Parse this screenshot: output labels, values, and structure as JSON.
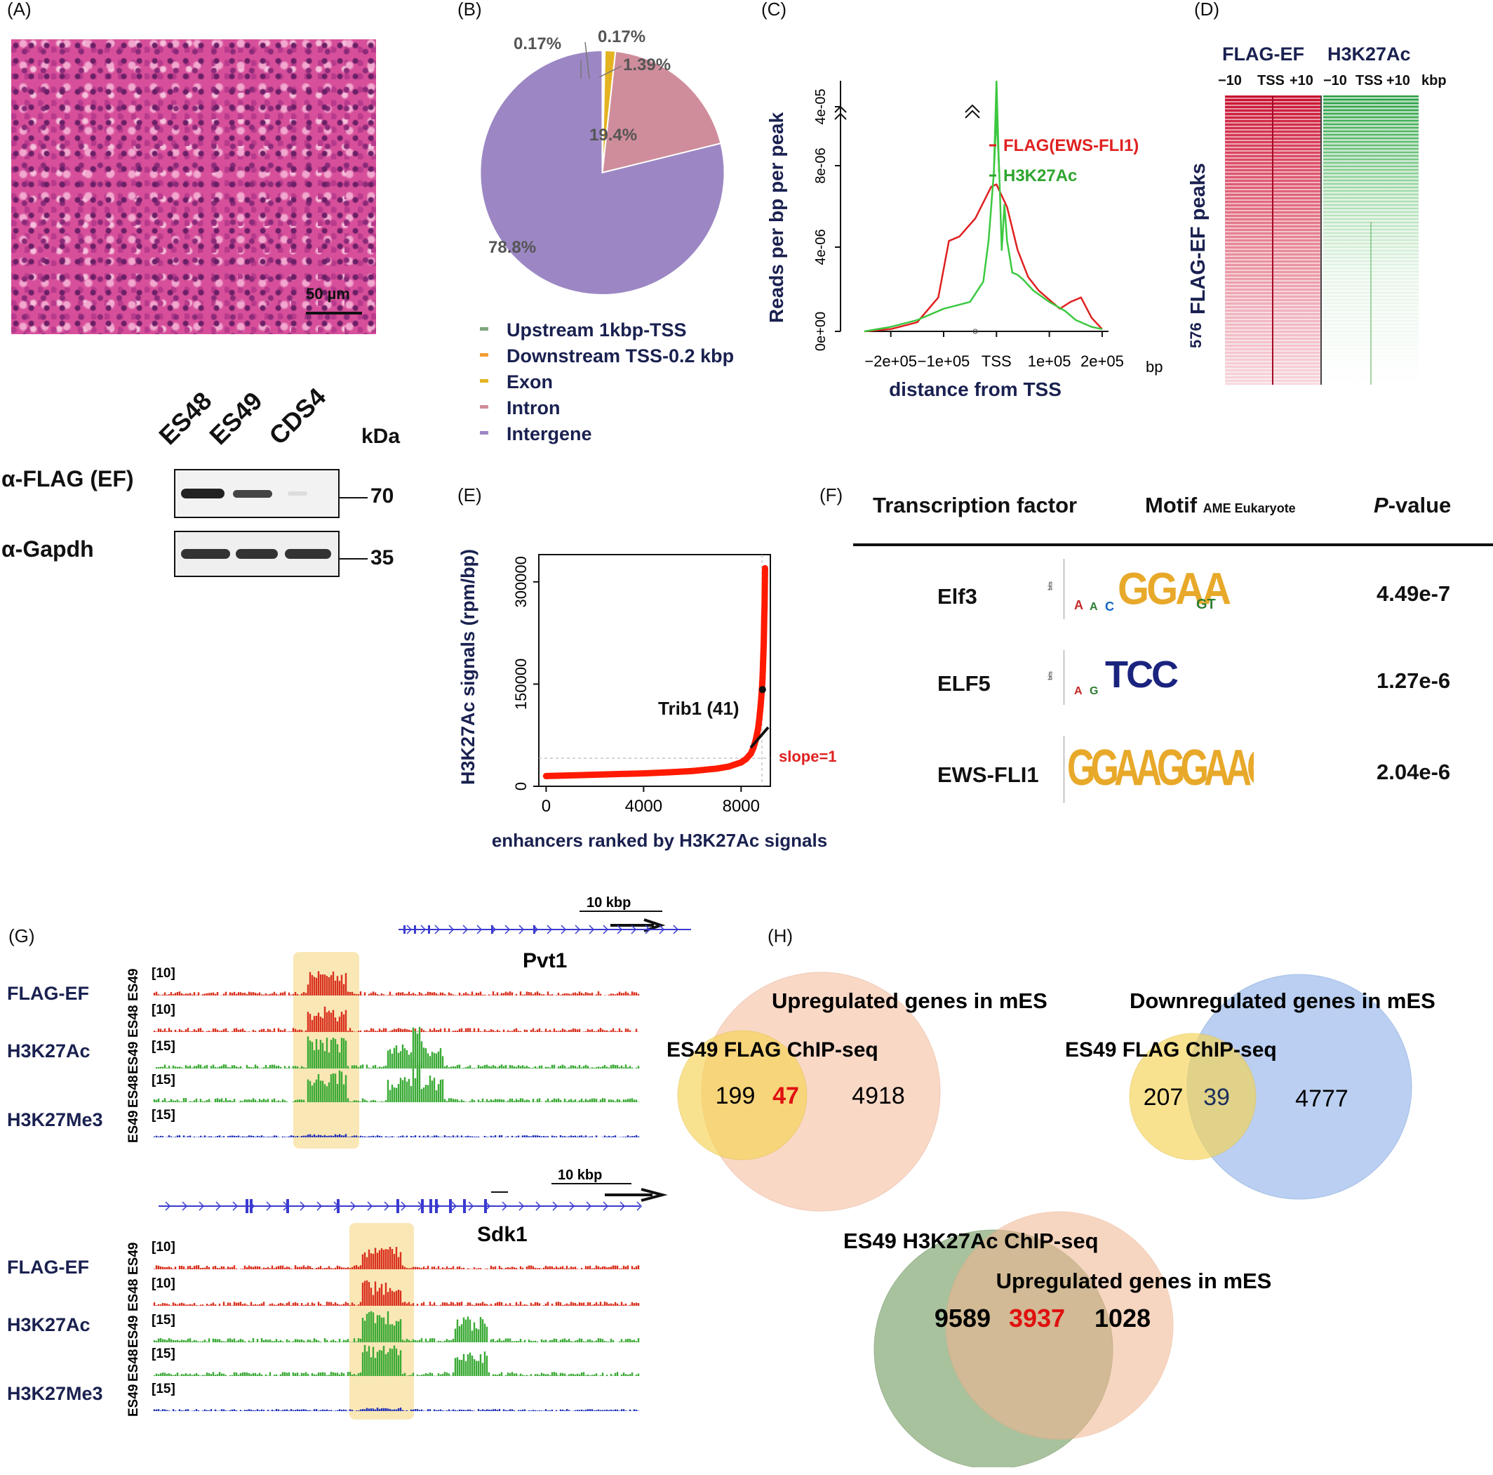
{
  "panels": {
    "a": "(A)",
    "b": "(B)",
    "c": "(C)",
    "d": "(D)",
    "e": "(E)",
    "f": "(F)",
    "g": "(G)",
    "h": "(H)"
  },
  "panel_a": {
    "scale_bar": "50 µm",
    "blot": {
      "lanes": [
        "ES48",
        "ES49",
        "CDS4"
      ],
      "unit": "kDa",
      "rows": [
        {
          "label": "α-FLAG (EF)",
          "size": "70"
        },
        {
          "label": "α-Gapdh",
          "size": "35"
        }
      ]
    }
  },
  "panel_b": {
    "chart_data": {
      "type": "pie",
      "slices": [
        {
          "label": "Upstream 1kbp-TSS",
          "value": 0.17,
          "text": "0.17%",
          "color": "#7fa77f"
        },
        {
          "label": "Downstream TSS-0.2 kbp",
          "value": 0.17,
          "text": "0.17%",
          "color": "#f39c34"
        },
        {
          "label": "Exon",
          "value": 1.39,
          "text": "1.39%",
          "color": "#e3b321"
        },
        {
          "label": "Intron",
          "value": 19.4,
          "text": "19.4%",
          "color": "#cf8d9b"
        },
        {
          "label": "Intergene",
          "value": 78.8,
          "text": "78.8%",
          "color": "#9c87c4"
        }
      ]
    }
  },
  "panel_c": {
    "chart_data": {
      "type": "line",
      "ylabel": "Reads per bp per peak",
      "xlabel": "distance from TSS",
      "x_ticks": [
        "−2e+05",
        "−1e+05",
        "TSS",
        "1e+05",
        "2e+05"
      ],
      "x_unit": "bp",
      "y_ticks": [
        "0e+00",
        "4e-06",
        "8e-06",
        "4e-05"
      ],
      "series": [
        {
          "name": "FLAG(EWS-FLI1)",
          "color": "#e02020",
          "x": [
            -250000,
            -200000,
            -150000,
            -110000,
            -90000,
            -70000,
            -40000,
            -10000,
            0,
            20000,
            40000,
            60000,
            80000,
            100000,
            120000,
            140000,
            160000,
            180000,
            200000
          ],
          "y": [
            0.0,
            1e-07,
            4e-07,
            1.5e-06,
            4e-06,
            4.2e-06,
            5e-06,
            6.4e-06,
            6.5e-06,
            5.5e-06,
            3.6e-06,
            2.4e-06,
            1.8e-06,
            1.4e-06,
            1e-06,
            1.3e-06,
            1.5e-06,
            6e-07,
            1e-07
          ]
        },
        {
          "name": "H3K27Ac",
          "color": "#3cc840",
          "x": [
            -250000,
            -200000,
            -150000,
            -100000,
            -50000,
            -25000,
            -15000,
            -5000,
            0,
            5000,
            10000,
            15000,
            20000,
            30000,
            40000,
            50000,
            70000,
            100000,
            130000,
            150000,
            180000,
            200000
          ],
          "y": [
            0.0,
            2e-07,
            5e-07,
            1e-06,
            1.3e-06,
            2.2e-06,
            4e-06,
            7e-06,
            9.6e-06,
            7.2e-06,
            3.6e-06,
            5.6e-06,
            4e-06,
            2.6e-06,
            2.5e-06,
            2.3e-06,
            1.8e-06,
            1.3e-06,
            9e-07,
            5e-07,
            2e-07,
            1e-07
          ]
        }
      ]
    }
  },
  "panel_d": {
    "headers": [
      "FLAG-EF",
      "H3K27Ac"
    ],
    "ticks_left": [
      "−10",
      "TSS",
      "+10"
    ],
    "ticks_right": [
      "−10",
      "TSS",
      "+10"
    ],
    "unit": "kbp",
    "count": "576",
    "ylabel": "FLAG-EF peaks"
  },
  "panel_e": {
    "chart_data": {
      "type": "scatter",
      "ylabel": "H3K27Ac signals (rpm/bp)",
      "xlabel": "enhancers ranked by H3K27Ac signals",
      "x_ticks": [
        0,
        4000,
        8000
      ],
      "y_ticks": [
        0,
        150000,
        300000
      ],
      "xlim": [
        -300,
        9200
      ],
      "ylim": [
        0,
        340000
      ],
      "points": [
        [
          0,
          15000
        ],
        [
          1000,
          16000
        ],
        [
          2000,
          17000
        ],
        [
          3000,
          18000
        ],
        [
          4000,
          19000
        ],
        [
          5000,
          20500
        ],
        [
          6000,
          22500
        ],
        [
          7000,
          26000
        ],
        [
          7500,
          29000
        ],
        [
          8000,
          35000
        ],
        [
          8200,
          40000
        ],
        [
          8400,
          48000
        ],
        [
          8500,
          56000
        ],
        [
          8600,
          68000
        ],
        [
          8700,
          85000
        ],
        [
          8750,
          100000
        ],
        [
          8800,
          118000
        ],
        [
          8850,
          140000
        ],
        [
          8880,
          160000
        ],
        [
          8900,
          180000
        ],
        [
          8915,
          195000
        ],
        [
          8930,
          210000
        ],
        [
          8940,
          230000
        ],
        [
          8950,
          250000
        ],
        [
          8960,
          262000
        ],
        [
          8970,
          285000
        ],
        [
          8980,
          320000
        ]
      ],
      "annotation": "Trib1 (41)",
      "annotation_point": [
        8880,
        142000
      ],
      "slope_label": "slope=1"
    }
  },
  "panel_f": {
    "headers": {
      "tf": "Transcription factor",
      "motif": "Motif",
      "motif_sub": "AME Eukaryote",
      "p": "P",
      "p_suffix": "-value"
    },
    "rows": [
      {
        "tf": "Elf3",
        "motif": "GGAA",
        "p": "4.49e-7"
      },
      {
        "tf": "ELF5",
        "motif": "TCC",
        "p": "1.27e-6"
      },
      {
        "tf": "EWS-FLI1",
        "motif": "GGAAGGAAGGAAGGAAGG",
        "p": "2.04e-6"
      }
    ],
    "axis_label": "bits"
  },
  "panel_g": {
    "scale": "10 kbp",
    "genes": [
      "Pvt1",
      "Sdk1"
    ],
    "tracks": [
      {
        "group": "FLAG-EF",
        "sample": "ES49",
        "scale": "[10]",
        "color": "#d9301e"
      },
      {
        "group": "",
        "sample": "ES48",
        "scale": "[10]",
        "color": "#d9301e"
      },
      {
        "group": "H3K27Ac",
        "sample": "ES49",
        "scale": "[15]",
        "color": "#3aaa35"
      },
      {
        "group": "",
        "sample": "ES48",
        "scale": "[15]",
        "color": "#3aaa35"
      },
      {
        "group": "H3K27Me3",
        "sample": "ES49",
        "scale": "[15]",
        "color": "#1d2fb8"
      }
    ]
  },
  "panel_h": {
    "venn1": {
      "title": "Upregulated genes in mES",
      "left_label": "ES49 FLAG ChIP-seq",
      "left": "199",
      "overlap": "47",
      "right": "4918"
    },
    "venn2": {
      "title": "Downregulated genes in mES",
      "left_label": "ES49 FLAG ChIP-seq",
      "left": "207",
      "overlap": "39",
      "right": "4777"
    },
    "venn3": {
      "left_label": "ES49 H3K27Ac ChIP-seq",
      "right_label": "Upregulated genes in mES",
      "left": "9589",
      "overlap": "3937",
      "right": "1028"
    }
  }
}
